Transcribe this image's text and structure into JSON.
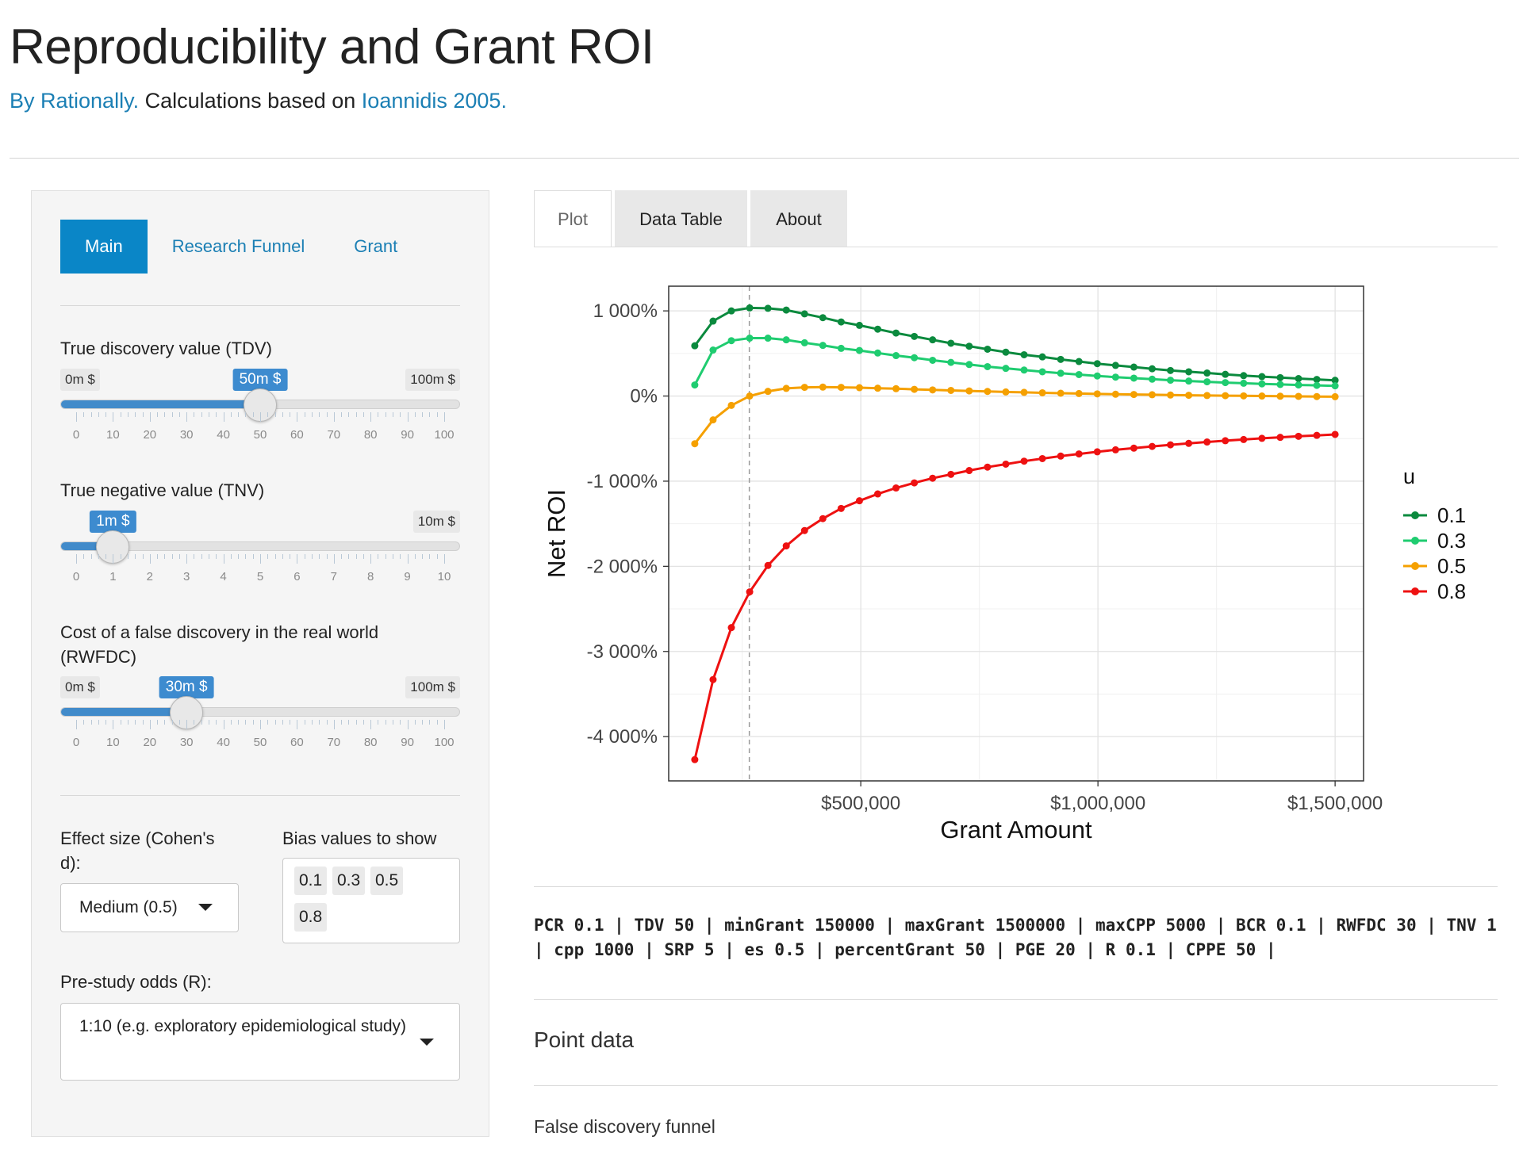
{
  "title": "Reproducibility and Grant ROI",
  "subtitle": {
    "by_link": "By Rationally.",
    "middle": "Calculations based on",
    "ref_link": "Ioannidis 2005."
  },
  "sidebar": {
    "tabs": [
      "Main",
      "Research Funnel",
      "Grant"
    ],
    "sliders": [
      {
        "label": "True discovery value (TDV)",
        "min_label": "0m $",
        "max_label": "100m $",
        "value_label": "50m $",
        "fraction": 0.5,
        "major_ticks": [
          "0",
          "10",
          "20",
          "30",
          "40",
          "50",
          "60",
          "70",
          "80",
          "90",
          "100"
        ]
      },
      {
        "label": "True negative value (TNV)",
        "min_label": "",
        "max_label": "10m $",
        "value_label": "1m $",
        "fraction": 0.1,
        "major_ticks": [
          "0",
          "1",
          "2",
          "3",
          "4",
          "5",
          "6",
          "7",
          "8",
          "9",
          "10"
        ]
      },
      {
        "label": "Cost of a false discovery in the real world (RWFDC)",
        "min_label": "0m $",
        "max_label": "100m $",
        "value_label": "30m $",
        "fraction": 0.3,
        "major_ticks": [
          "0",
          "10",
          "20",
          "30",
          "40",
          "50",
          "60",
          "70",
          "80",
          "90",
          "100"
        ]
      }
    ],
    "effect_size": {
      "label": "Effect size (Cohen's d):",
      "value": "Medium (0.5)"
    },
    "bias": {
      "label": "Bias values to show",
      "chips": [
        "0.1",
        "0.3",
        "0.5",
        "0.8"
      ]
    },
    "prestudy": {
      "label": "Pre-study odds (R):",
      "value": "1:10 (e.g. exploratory epidemiological study)"
    }
  },
  "main": {
    "tabs": [
      "Plot",
      "Data Table",
      "About"
    ],
    "params_text": "PCR 0.1 | TDV 50 | minGrant 150000 | maxGrant 1500000 | maxCPP 5000 | BCR 0.1 | RWFDC 30 | TNV 1 | cpp 1000 | SRP 5 | es 0.5 | percentGrant 50 | PGE 20 | R 0.1 | CPPE 50 |",
    "point_data": "Point data",
    "false_discovery_funnel": "False discovery funnel"
  },
  "chart_data": {
    "type": "line",
    "xlabel": "Grant Amount",
    "ylabel": "Net ROI",
    "xlim": [
      95000,
      1560000
    ],
    "ylim": [
      -4520,
      1290
    ],
    "x_ticks": [
      500000,
      1000000,
      1500000
    ],
    "x_tick_labels": [
      "$500,000",
      "$1,000,000",
      "$1,500,000"
    ],
    "y_ticks": [
      1000,
      0,
      -1000,
      -2000,
      -3000,
      -4000
    ],
    "y_tick_labels": [
      "1 000%",
      "0%",
      "-1 000%",
      "-2 000%",
      "-3 000%",
      "-4 000%"
    ],
    "vline_x": 265000,
    "legend_title": "u",
    "legend_position": "right",
    "grid": true,
    "x": [
      150000,
      188571,
      227143,
      265714,
      304286,
      342857,
      381429,
      420000,
      458571,
      497143,
      535714,
      574286,
      612857,
      651429,
      690000,
      728571,
      767143,
      805714,
      844286,
      882857,
      921429,
      960000,
      998571,
      1037143,
      1075714,
      1114286,
      1152857,
      1191429,
      1230000,
      1268571,
      1307143,
      1345714,
      1384286,
      1422857,
      1461429,
      1500000
    ],
    "series": [
      {
        "name": "0.1",
        "color": "#0b8a3e",
        "values": [
          590,
          880,
          1000,
          1035,
          1030,
          1010,
          965,
          920,
          870,
          830,
          785,
          740,
          700,
          660,
          620,
          585,
          550,
          515,
          485,
          460,
          430,
          405,
          380,
          360,
          340,
          320,
          300,
          285,
          270,
          255,
          240,
          228,
          216,
          205,
          195,
          185
        ]
      },
      {
        "name": "0.3",
        "color": "#1fcc70",
        "values": [
          130,
          540,
          650,
          680,
          680,
          660,
          625,
          595,
          560,
          535,
          505,
          475,
          450,
          420,
          395,
          370,
          345,
          325,
          305,
          285,
          268,
          252,
          236,
          222,
          210,
          198,
          186,
          176,
          167,
          158,
          150,
          143,
          136,
          130,
          125,
          120
        ]
      },
      {
        "name": "0.5",
        "color": "#f5a000",
        "values": [
          -560,
          -280,
          -110,
          0,
          55,
          90,
          102,
          105,
          102,
          98,
          92,
          86,
          79,
          72,
          66,
          60,
          54,
          48,
          43,
          38,
          33,
          29,
          25,
          21,
          18,
          15,
          12,
          9,
          6,
          4,
          2,
          0,
          -2,
          -4,
          -6,
          -8
        ]
      },
      {
        "name": "0.8",
        "color": "#ee1111",
        "values": [
          -4270,
          -3330,
          -2720,
          -2300,
          -1990,
          -1760,
          -1580,
          -1440,
          -1320,
          -1230,
          -1150,
          -1080,
          -1020,
          -965,
          -920,
          -875,
          -835,
          -800,
          -765,
          -735,
          -705,
          -680,
          -655,
          -632,
          -612,
          -592,
          -573,
          -556,
          -540,
          -525,
          -511,
          -497,
          -485,
          -473,
          -462,
          -451
        ]
      }
    ]
  }
}
